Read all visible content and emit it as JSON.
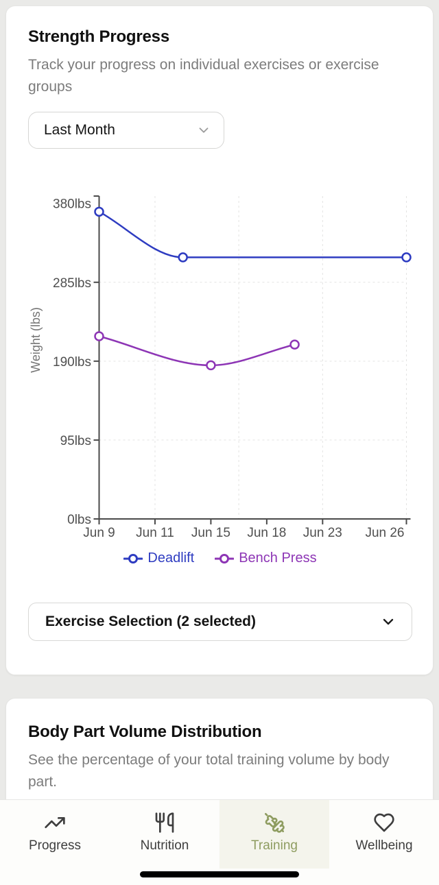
{
  "strength_card": {
    "title": "Strength Progress",
    "subtitle": "Track your progress on individual exercises or exercise groups",
    "time_range_select": {
      "value": "Last Month"
    },
    "exercise_select": {
      "label": "Exercise Selection (2 selected)"
    }
  },
  "chart_data": {
    "type": "line",
    "ylabel": "Weight (lbs)",
    "ylim": [
      0,
      380
    ],
    "y_ticks": [
      {
        "value": 0,
        "label": "0lbs"
      },
      {
        "value": 95,
        "label": "95lbs"
      },
      {
        "value": 190,
        "label": "190lbs"
      },
      {
        "value": 285,
        "label": "285lbs"
      },
      {
        "value": 380,
        "label": "380lbs"
      }
    ],
    "x_ticks": [
      {
        "slot": 0,
        "label": "Jun 9"
      },
      {
        "slot": 2,
        "label": "Jun 11"
      },
      {
        "slot": 4,
        "label": "Jun 15"
      },
      {
        "slot": 6,
        "label": "Jun 18"
      },
      {
        "slot": 8,
        "label": "Jun 23"
      },
      {
        "slot": 11,
        "label": "Jun 26"
      }
    ],
    "x_slot_max": 11,
    "grid": {
      "v_slots": [
        2,
        5,
        8,
        11
      ],
      "h_values": [
        95,
        190,
        285
      ],
      "style": "dashed"
    },
    "legend_position": "bottom",
    "series": [
      {
        "name": "Deadlift",
        "color": "#2e3cc1",
        "points": [
          {
            "slot": 0,
            "date": "Jun 9",
            "lbs": 370
          },
          {
            "slot": 3,
            "date": "Jun 13",
            "lbs": 315
          },
          {
            "slot": 11,
            "date": "Jun 26",
            "lbs": 315
          }
        ]
      },
      {
        "name": "Bench Press",
        "color": "#8d35b5",
        "points": [
          {
            "slot": 0,
            "date": "Jun 9",
            "lbs": 220
          },
          {
            "slot": 4,
            "date": "Jun 15",
            "lbs": 185
          },
          {
            "slot": 7,
            "date": "Jun 20",
            "lbs": 210
          }
        ]
      }
    ]
  },
  "body_part_card": {
    "title": "Body Part Volume Distribution",
    "subtitle": "See the percentage of your total training volume by body part."
  },
  "tab_bar": {
    "active_color": "#8e9c60",
    "active_bg": "#f4f4ec",
    "items": [
      {
        "label": "Progress",
        "icon": "trending-up-icon"
      },
      {
        "label": "Nutrition",
        "icon": "utensils-icon"
      },
      {
        "label": "Training",
        "icon": "dumbbell-icon",
        "active": true
      },
      {
        "label": "Wellbeing",
        "icon": "heart-icon"
      }
    ]
  }
}
